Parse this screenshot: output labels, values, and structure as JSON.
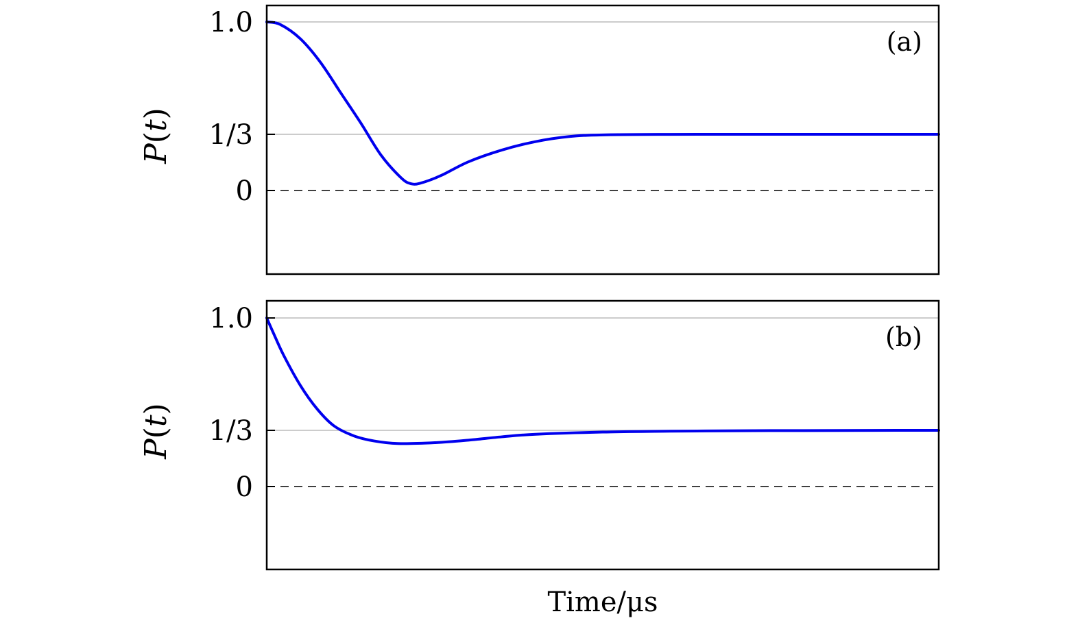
{
  "chart_data": [
    {
      "type": "line",
      "panel_label": "(a)",
      "ylabel": "P(t)",
      "ylabel_main": "P(",
      "ylabel_var": "t",
      "ylabel_close": ")",
      "xlabel": "",
      "ylim": [
        -0.49,
        1.1
      ],
      "xlim": [
        0,
        1
      ],
      "yticks": [
        {
          "value": 1.0,
          "label": "1.0"
        },
        {
          "value": 0.3333,
          "label": "1/3"
        },
        {
          "value": 0,
          "label": "0"
        }
      ],
      "reference_lines": [
        {
          "value": 1.0,
          "style": "solid",
          "color": "#bbbbbb"
        },
        {
          "value": 0.3333,
          "style": "solid",
          "color": "#bbbbbb"
        },
        {
          "value": 0,
          "style": "dashed",
          "color": "#000000"
        }
      ],
      "series": [
        {
          "color": "#0000ee",
          "x": [
            0,
            0.02,
            0.05,
            0.08,
            0.11,
            0.14,
            0.17,
            0.2,
            0.215,
            0.23,
            0.26,
            0.3,
            0.35,
            0.4,
            0.45,
            0.5,
            0.6,
            0.7,
            0.8,
            0.9,
            1.0
          ],
          "y": [
            1.0,
            0.985,
            0.9,
            0.76,
            0.58,
            0.4,
            0.21,
            0.075,
            0.04,
            0.045,
            0.09,
            0.17,
            0.24,
            0.29,
            0.32,
            0.33,
            0.333,
            0.3333,
            0.3333,
            0.3333,
            0.3333
          ]
        }
      ]
    },
    {
      "type": "line",
      "panel_label": "(b)",
      "ylabel": "P(t)",
      "ylabel_main": "P(",
      "ylabel_var": "t",
      "ylabel_close": ")",
      "xlabel": "Time/μs",
      "ylim": [
        -0.49,
        1.1
      ],
      "xlim": [
        0,
        1
      ],
      "yticks": [
        {
          "value": 1.0,
          "label": "1.0"
        },
        {
          "value": 0.3333,
          "label": "1/3"
        },
        {
          "value": 0,
          "label": "0"
        }
      ],
      "reference_lines": [
        {
          "value": 1.0,
          "style": "solid",
          "color": "#bbbbbb"
        },
        {
          "value": 0.3333,
          "style": "solid",
          "color": "#bbbbbb"
        },
        {
          "value": 0,
          "style": "dashed",
          "color": "#000000"
        }
      ],
      "series": [
        {
          "color": "#0000ee",
          "x": [
            0,
            0.01,
            0.025,
            0.05,
            0.075,
            0.1,
            0.13,
            0.16,
            0.195,
            0.25,
            0.3,
            0.35,
            0.4,
            0.5,
            0.6,
            0.7,
            0.8,
            0.9,
            1.0
          ],
          "y": [
            1.0,
            0.91,
            0.78,
            0.6,
            0.46,
            0.36,
            0.3,
            0.27,
            0.255,
            0.26,
            0.275,
            0.295,
            0.31,
            0.323,
            0.328,
            0.331,
            0.332,
            0.333,
            0.3333
          ]
        }
      ]
    }
  ]
}
